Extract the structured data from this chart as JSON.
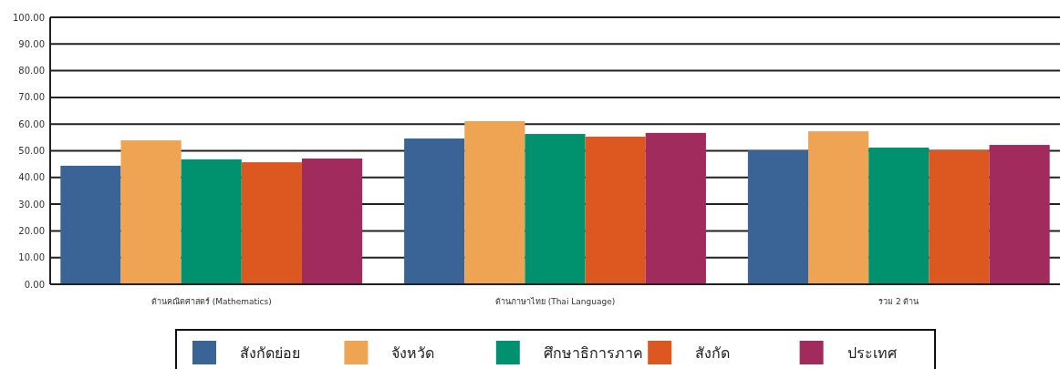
{
  "chart_data": {
    "type": "bar",
    "categories": [
      "ด้านคณิตศาสตร์ (Mathematics)",
      "ด้านภาษาไทย (Thai Language)",
      "รวม 2 ด้าน"
    ],
    "series": [
      {
        "name": "สังกัดย่อย",
        "color": "#3b6496",
        "values": [
          44.4,
          54.6,
          50.2
        ]
      },
      {
        "name": "จังหวัด",
        "color": "#eea453",
        "values": [
          53.9,
          61.1,
          57.3
        ]
      },
      {
        "name": "ศึกษาธิการภาค",
        "color": "#00916e",
        "values": [
          46.8,
          56.3,
          51.2
        ]
      },
      {
        "name": "สังกัด",
        "color": "#dc5820",
        "values": [
          45.7,
          55.3,
          50.2
        ]
      },
      {
        "name": "ประเทศ",
        "color": "#a22b5e",
        "values": [
          47.1,
          56.7,
          52.2
        ]
      }
    ],
    "ylim": [
      0,
      100
    ],
    "yticks": [
      {
        "value": 0,
        "label": "0.00"
      },
      {
        "value": 10,
        "label": "10.00"
      },
      {
        "value": 20,
        "label": "20.00"
      },
      {
        "value": 30,
        "label": "30.00"
      },
      {
        "value": 40,
        "label": "40.00"
      },
      {
        "value": 50,
        "label": "50.00"
      },
      {
        "value": 60,
        "label": "60.00"
      },
      {
        "value": 70,
        "label": "70.00"
      },
      {
        "value": 80,
        "label": "80.00"
      },
      {
        "value": 90,
        "label": "90.00"
      },
      {
        "value": 100,
        "label": "100.00"
      }
    ],
    "grid": "y",
    "legend": "bottom"
  }
}
